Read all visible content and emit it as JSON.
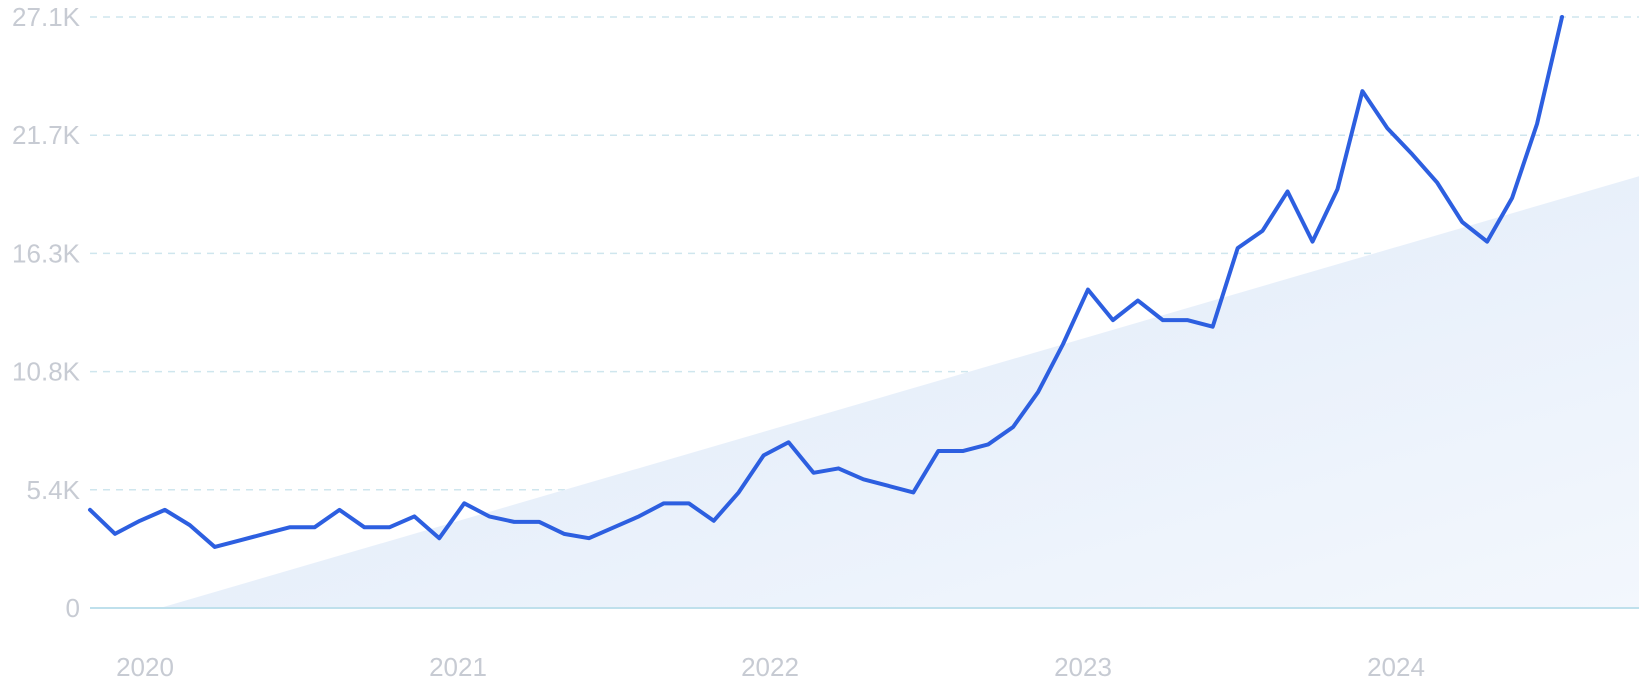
{
  "chart_data": {
    "type": "line",
    "title": "",
    "xlabel": "",
    "ylabel": "",
    "y_ticks": [
      "0",
      "5.4K",
      "10.8K",
      "16.3K",
      "21.7K",
      "27.1K"
    ],
    "x_ticks": [
      "2020",
      "2021",
      "2022",
      "2023",
      "2024"
    ],
    "ylim": [
      0,
      27100
    ],
    "grid": true,
    "colors": {
      "line": "#2d5fe0",
      "grid": "#cfe6ee",
      "area": "#e3eefb",
      "tick_text": "#c7cbd3"
    },
    "series": [
      {
        "values": [
          4500,
          3400,
          4000,
          4500,
          3800,
          2800,
          3100,
          3400,
          3700,
          3700,
          4500,
          3700,
          3700,
          4200,
          3200,
          4800,
          4200,
          3950,
          3950,
          3400,
          3200,
          3700,
          4200,
          4800,
          4800,
          4000,
          5300,
          7000,
          7600,
          6200,
          6400,
          5900,
          5600,
          5300,
          7200,
          7200,
          7500,
          8300,
          9900,
          12100,
          14600,
          13200,
          14100,
          13200,
          13200,
          12900,
          16500,
          17300,
          19100,
          16800,
          19200,
          23700,
          22000,
          20800,
          19500,
          17700,
          16800,
          18800,
          22200,
          27100
        ]
      }
    ],
    "trend_area": {
      "start": 0,
      "end": 19800
    }
  }
}
